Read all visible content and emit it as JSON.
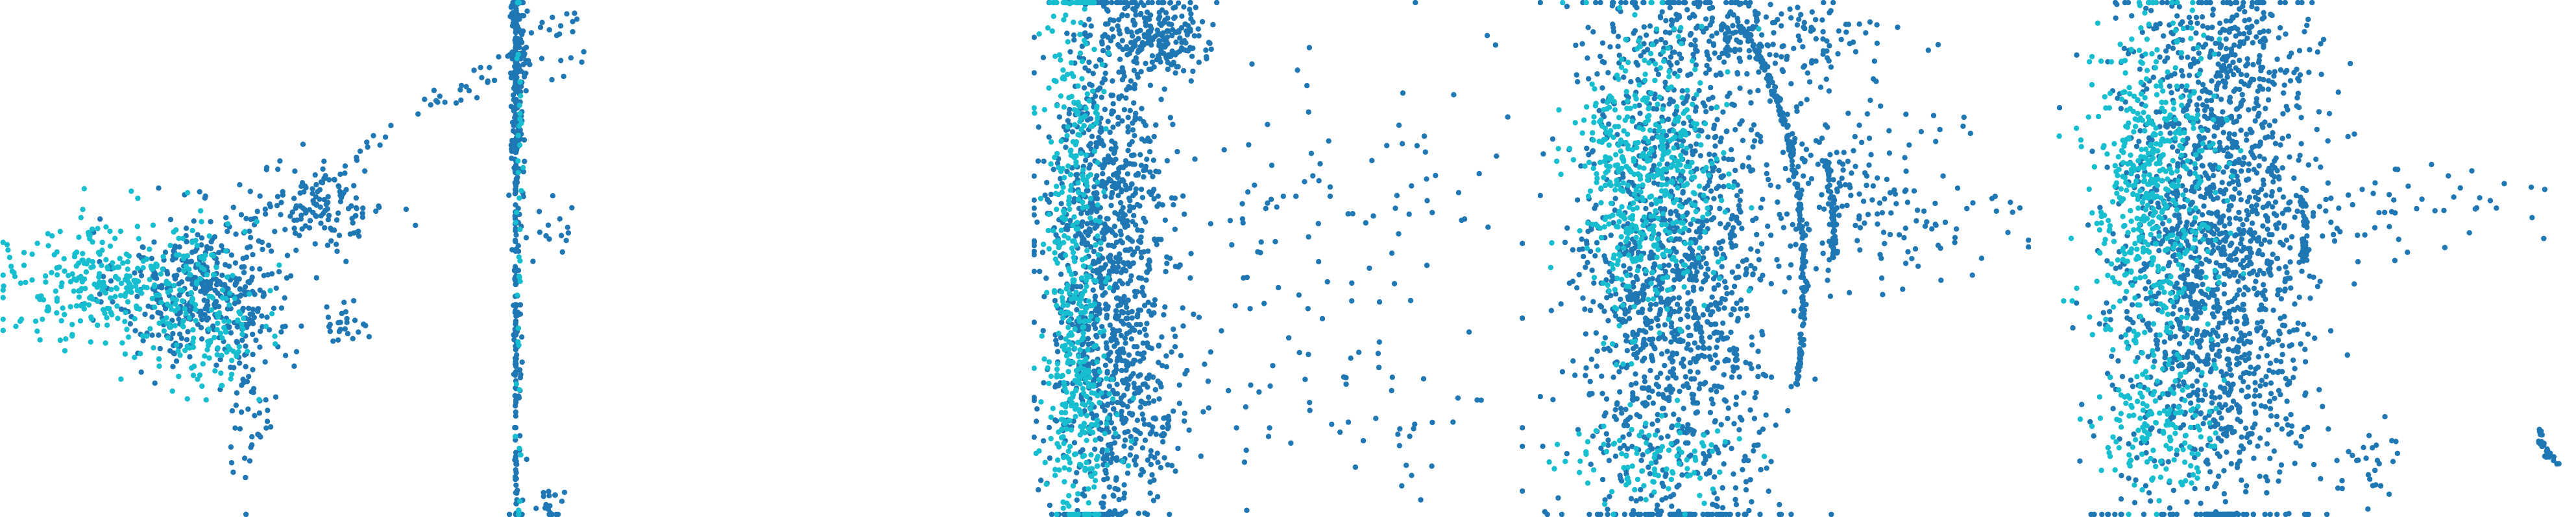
{
  "figure": {
    "colors": {
      "dark": "#1f77b4",
      "light": "#17becf"
    }
  },
  "chart_data": [
    {
      "type": "scatter",
      "xlim": [
        0,
        1
      ],
      "ylim": [
        0,
        1
      ],
      "grid": false,
      "legend": "none",
      "series": [
        {
          "color": "#1f77b4",
          "clusters": [
            {
              "cx": 0.33,
              "cy": 0.44,
              "sx": 0.07,
              "sy": 0.07,
              "n": 420
            },
            {
              "cx": 0.52,
              "cy": 0.6,
              "sx": 0.05,
              "sy": 0.04,
              "n": 120
            },
            {
              "cx": 0.4,
              "cy": 0.22,
              "sx": 0.025,
              "sy": 0.07,
              "n": 50
            },
            {
              "cx": 0.55,
              "cy": 0.38,
              "sx": 0.02,
              "sy": 0.02,
              "n": 25
            }
          ],
          "lines": [
            {
              "x1": 0.4,
              "y1": 0.56,
              "x2": 0.93,
              "y2": 0.98,
              "n": 70,
              "jitter": 0.012
            }
          ]
        },
        {
          "color": "#17becf",
          "clusters": [
            {
              "cx": 0.18,
              "cy": 0.46,
              "sx": 0.09,
              "sy": 0.06,
              "n": 300
            },
            {
              "cx": 0.33,
              "cy": 0.36,
              "sx": 0.05,
              "sy": 0.06,
              "n": 120
            }
          ]
        }
      ]
    },
    {
      "type": "scatter",
      "xlim": [
        0,
        1
      ],
      "ylim": [
        0,
        1
      ],
      "grid": false,
      "legend": "none",
      "series": [
        {
          "color": "#1f77b4",
          "clusters": [
            {
              "cx": 0.18,
              "cy": 0.87,
              "sx": 0.03,
              "sy": 0.1,
              "n": 170
            },
            {
              "cx": 0.18,
              "cy": 0.5,
              "sx": 0.02,
              "sy": 0.32,
              "n": 70
            },
            {
              "cx": 0.45,
              "cy": 0.55,
              "sx": 0.1,
              "sy": 0.04,
              "n": 14
            },
            {
              "cx": 0.4,
              "cy": 0.03,
              "sx": 0.06,
              "sy": 0.02,
              "n": 20
            },
            {
              "cx": 0.55,
              "cy": 0.85,
              "sx": 0.08,
              "sy": 0.05,
              "n": 8
            }
          ],
          "lines": [
            {
              "x1": 0.165,
              "y1": 0.01,
              "x2": 0.165,
              "y2": 0.99,
              "n": 130,
              "jitter": 0.003
            }
          ]
        },
        {
          "color": "#17becf",
          "clusters": [
            {
              "cx": 0.19,
              "cy": 0.55,
              "sx": 0.012,
              "sy": 0.3,
              "n": 40
            }
          ]
        }
      ]
    },
    {
      "type": "scatter",
      "xlim": [
        0,
        1
      ],
      "ylim": [
        0,
        1
      ],
      "grid": false,
      "legend": "none",
      "series": [
        {
          "color": "#1f77b4",
          "clusters": [
            {
              "cx": 0.15,
              "cy": 0.5,
              "sx": 0.06,
              "sy": 0.27,
              "n": 1100
            },
            {
              "cx": 0.26,
              "cy": 0.93,
              "sx": 0.05,
              "sy": 0.04,
              "n": 200
            },
            {
              "cx": 0.5,
              "cy": 0.52,
              "sx": 0.22,
              "sy": 0.18,
              "n": 150
            },
            {
              "cx": 0.2,
              "cy": 0.2,
              "sx": 0.05,
              "sy": 0.08,
              "n": 120
            },
            {
              "cx": 0.6,
              "cy": 0.18,
              "sx": 0.2,
              "sy": 0.06,
              "n": 50
            }
          ]
        },
        {
          "color": "#17becf",
          "clusters": [
            {
              "cx": 0.09,
              "cy": 0.55,
              "sx": 0.03,
              "sy": 0.28,
              "n": 380
            },
            {
              "cx": 0.1,
              "cy": 0.22,
              "sx": 0.04,
              "sy": 0.08,
              "n": 120
            }
          ]
        }
      ]
    },
    {
      "type": "scatter",
      "xlim": [
        0,
        1
      ],
      "ylim": [
        0,
        1
      ],
      "grid": false,
      "legend": "none",
      "series": [
        {
          "color": "#1f77b4",
          "clusters": [
            {
              "cx": 0.28,
              "cy": 0.45,
              "sx": 0.1,
              "sy": 0.26,
              "n": 1400
            },
            {
              "cx": 0.4,
              "cy": 0.93,
              "sx": 0.14,
              "sy": 0.04,
              "n": 250
            },
            {
              "cx": 0.62,
              "cy": 0.65,
              "sx": 0.1,
              "sy": 0.1,
              "n": 160
            },
            {
              "cx": 0.8,
              "cy": 0.55,
              "sx": 0.1,
              "sy": 0.05,
              "n": 40
            }
          ],
          "arcs": [
            {
              "cx": 0.3,
              "cy": 0.45,
              "rx": 0.24,
              "ry": 0.56,
              "a1": -0.35,
              "a2": 1.1,
              "n": 220
            },
            {
              "cx": 0.32,
              "cy": 0.55,
              "rx": 0.28,
              "ry": 0.4,
              "a1": -0.15,
              "a2": 0.35,
              "n": 70
            }
          ]
        },
        {
          "color": "#17becf",
          "clusters": [
            {
              "cx": 0.22,
              "cy": 0.65,
              "sx": 0.07,
              "sy": 0.14,
              "n": 500
            },
            {
              "cx": 0.22,
              "cy": 0.12,
              "sx": 0.08,
              "sy": 0.05,
              "n": 100
            }
          ]
        }
      ]
    },
    {
      "type": "scatter",
      "xlim": [
        0,
        1
      ],
      "ylim": [
        0,
        1
      ],
      "grid": false,
      "legend": "none",
      "series": [
        {
          "color": "#1f77b4",
          "clusters": [
            {
              "cx": 0.32,
              "cy": 0.48,
              "sx": 0.09,
              "sy": 0.25,
              "n": 1500
            },
            {
              "cx": 0.36,
              "cy": 0.88,
              "sx": 0.08,
              "sy": 0.07,
              "n": 180
            },
            {
              "cx": 0.68,
              "cy": 0.6,
              "sx": 0.14,
              "sy": 0.05,
              "n": 60
            },
            {
              "cx": 0.6,
              "cy": 0.1,
              "sx": 0.04,
              "sy": 0.04,
              "n": 30
            }
          ],
          "arcs": [
            {
              "cx": 0.33,
              "cy": 0.45,
              "rx": 0.14,
              "ry": 0.52,
              "a1": -1.75,
              "a2": -1.35,
              "n": 60
            },
            {
              "cx": 0.31,
              "cy": 0.55,
              "rx": 0.18,
              "ry": 0.28,
              "a1": -0.2,
              "a2": 0.25,
              "n": 40
            },
            {
              "cx": 0.98,
              "cy": 0.18,
              "rx": 0.05,
              "ry": 0.08,
              "a1": 3.3,
              "a2": 4.5,
              "n": 30
            }
          ]
        },
        {
          "color": "#17becf",
          "clusters": [
            {
              "cx": 0.2,
              "cy": 0.62,
              "sx": 0.06,
              "sy": 0.18,
              "n": 520
            },
            {
              "cx": 0.22,
              "cy": 0.18,
              "sx": 0.06,
              "sy": 0.07,
              "n": 150
            }
          ]
        }
      ]
    }
  ]
}
